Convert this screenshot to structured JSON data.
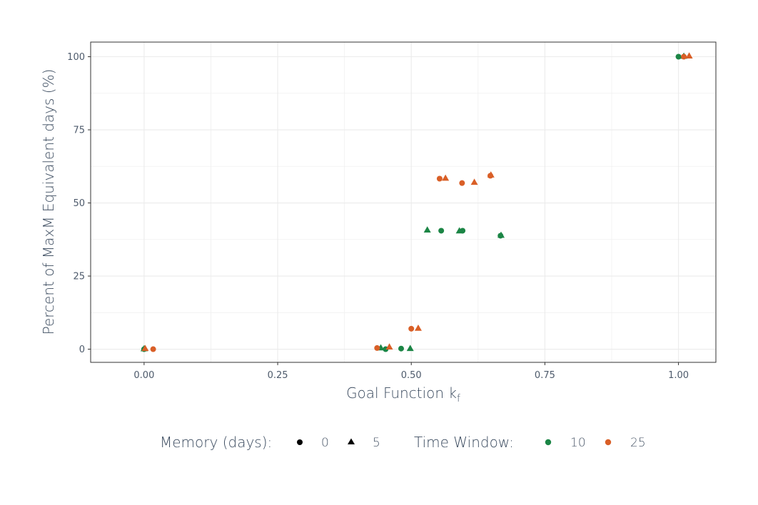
{
  "chart_data": {
    "type": "scatter",
    "title": "",
    "xlabel_main": "Goal Function k",
    "xlabel_sub": "f",
    "ylabel": "Percent of MaxM Equivalent days (%)",
    "xlim": [
      -0.1,
      1.07
    ],
    "ylim": [
      -4.5,
      105
    ],
    "x_ticks": [
      0.0,
      0.25,
      0.5,
      0.75,
      1.0
    ],
    "x_tick_labels": [
      "0.00",
      "0.25",
      "0.50",
      "0.75",
      "1.00"
    ],
    "y_ticks": [
      0,
      25,
      50,
      75,
      100
    ],
    "y_tick_labels": [
      "0",
      "25",
      "50",
      "75",
      "100"
    ],
    "grid": true,
    "legend_position": "bottom",
    "legend": {
      "shape_title": "Memory (days):",
      "shape_entries": [
        {
          "label": "0",
          "shape": "circle"
        },
        {
          "label": "5",
          "shape": "triangle"
        }
      ],
      "color_title": "Time Window:",
      "color_entries": [
        {
          "label": "10",
          "color": "#1b8545"
        },
        {
          "label": "25",
          "color": "#d95f27"
        }
      ]
    },
    "series": [
      {
        "memory": "0",
        "time_window": "10",
        "shape": "circle",
        "color": "#1b8545",
        "points": [
          [
            0.0,
            0.0
          ],
          [
            0.452,
            0.0
          ],
          [
            0.481,
            0.2
          ],
          [
            0.556,
            40.5
          ],
          [
            0.596,
            40.5
          ],
          [
            0.667,
            38.8
          ],
          [
            1.0,
            100.0
          ]
        ]
      },
      {
        "memory": "5",
        "time_window": "10",
        "shape": "triangle",
        "color": "#1b8545",
        "points": [
          [
            0.0,
            0.2
          ],
          [
            0.443,
            0.5
          ],
          [
            0.498,
            0.3
          ],
          [
            0.53,
            40.8
          ],
          [
            0.59,
            40.5
          ],
          [
            0.668,
            39.0
          ],
          [
            1.01,
            100.2
          ]
        ]
      },
      {
        "memory": "0",
        "time_window": "25",
        "shape": "circle",
        "color": "#d95f27",
        "points": [
          [
            0.017,
            0.0
          ],
          [
            0.436,
            0.4
          ],
          [
            0.5,
            7.0
          ],
          [
            0.553,
            58.3
          ],
          [
            0.595,
            56.8
          ],
          [
            0.648,
            59.3
          ],
          [
            1.01,
            100.0
          ]
        ]
      },
      {
        "memory": "5",
        "time_window": "25",
        "shape": "triangle",
        "color": "#d95f27",
        "points": [
          [
            0.002,
            0.3
          ],
          [
            0.459,
            0.8
          ],
          [
            0.513,
            7.2
          ],
          [
            0.564,
            58.5
          ],
          [
            0.618,
            57.1
          ],
          [
            0.649,
            59.6
          ],
          [
            1.02,
            100.3
          ]
        ]
      }
    ]
  }
}
